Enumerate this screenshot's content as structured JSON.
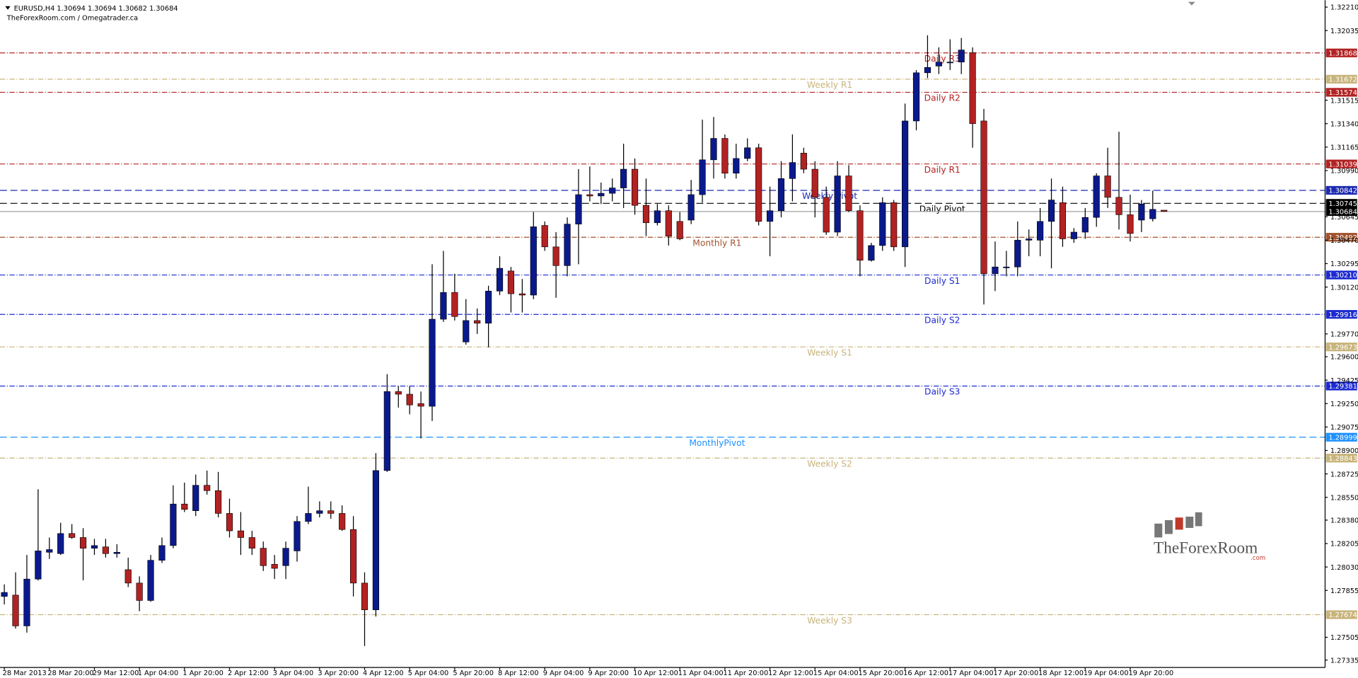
{
  "chart_data": {
    "type": "candlestick",
    "title": "EURUSD,H4  1.30694 1.30694 1.30682 1.30684",
    "subtitle": "TheForexRoom.com / Omegatrader.ca",
    "logo": {
      "text": "TheForexRoom",
      "suffix": ".com"
    },
    "up_color": "#0a1a8c",
    "down_color": "#b22222",
    "ylim": [
      1.2728,
      1.32262
    ],
    "yticks": [
      {
        "value": 1.3221,
        "label": "1.32210"
      },
      {
        "value": 1.32035,
        "label": "1.32035"
      },
      {
        "value": 1.31515,
        "label": "1.31515"
      },
      {
        "value": 1.3134,
        "label": "1.31340"
      },
      {
        "value": 1.31165,
        "label": "1.31165"
      },
      {
        "value": 1.3099,
        "label": "1.30990"
      },
      {
        "value": 1.30645,
        "label": "1.30645"
      },
      {
        "value": 1.3047,
        "label": "1.30470"
      },
      {
        "value": 1.30295,
        "label": "1.30295"
      },
      {
        "value": 1.3012,
        "label": "1.30120"
      },
      {
        "value": 1.2977,
        "label": "1.29770"
      },
      {
        "value": 1.296,
        "label": "1.29600"
      },
      {
        "value": 1.29425,
        "label": "1.29425"
      },
      {
        "value": 1.2925,
        "label": "1.29250"
      },
      {
        "value": 1.29075,
        "label": "1.29075"
      },
      {
        "value": 1.289,
        "label": "1.28900"
      },
      {
        "value": 1.28725,
        "label": "1.28725"
      },
      {
        "value": 1.2855,
        "label": "1.28550"
      },
      {
        "value": 1.2838,
        "label": "1.28380"
      },
      {
        "value": 1.28205,
        "label": "1.28205"
      },
      {
        "value": 1.2803,
        "label": "1.28030"
      },
      {
        "value": 1.27855,
        "label": "1.27855"
      },
      {
        "value": 1.27505,
        "label": "1.27505"
      },
      {
        "value": 1.27335,
        "label": "1.27335"
      }
    ],
    "categories": [
      "28 Mar 2013",
      null,
      null,
      null,
      "28 Mar 20:00",
      null,
      null,
      null,
      "29 Mar 12:00",
      null,
      null,
      null,
      "1 Apr 04:00",
      null,
      null,
      null,
      "1 Apr 20:00",
      null,
      null,
      null,
      "2 Apr 12:00",
      null,
      null,
      null,
      "3 Apr 04:00",
      null,
      null,
      null,
      "3 Apr 20:00",
      null,
      null,
      null,
      "4 Apr 12:00",
      null,
      null,
      null,
      "5 Apr 04:00",
      null,
      null,
      null,
      "5 Apr 20:00",
      null,
      null,
      null,
      "8 Apr 12:00",
      null,
      null,
      null,
      "9 Apr 04:00",
      null,
      null,
      null,
      "9 Apr 20:00",
      null,
      null,
      null,
      "10 Apr 12:00",
      null,
      null,
      null,
      "11 Apr 04:00",
      null,
      null,
      null,
      "11 Apr 20:00",
      null,
      null,
      null,
      "12 Apr 12:00",
      null,
      null,
      null,
      "15 Apr 04:00",
      null,
      null,
      null,
      "15 Apr 20:00",
      null,
      null,
      null,
      "16 Apr 12:00",
      null,
      null,
      null,
      "17 Apr 04:00",
      null,
      null,
      null,
      "17 Apr 20:00",
      null,
      null,
      null,
      "18 Apr 12:00",
      null,
      null,
      null,
      "19 Apr 04:00",
      null,
      null,
      null,
      "19 Apr 20:00",
      null,
      null,
      null
    ],
    "open": [
      1.2781,
      1.2782,
      1.2759,
      1.2794,
      1.2814,
      1.2813,
      1.2828,
      1.2825,
      1.2817,
      1.2818,
      1.2813,
      1.2801,
      1.2791,
      1.2778,
      1.2808,
      1.2819,
      1.285,
      1.2845,
      1.2864,
      1.286,
      1.2843,
      1.283,
      1.2825,
      1.2817,
      1.2805,
      1.2804,
      1.2815,
      1.2837,
      1.2843,
      1.2845,
      1.2843,
      1.2831,
      1.2791,
      1.2771,
      1.2875,
      1.2934,
      1.2932,
      1.2925,
      1.2923,
      1.2988,
      1.3008,
      1.2971,
      1.2987,
      1.2985,
      1.3009,
      1.3024,
      1.3007,
      1.3006,
      1.3058,
      1.3042,
      1.3028,
      1.3059,
      1.3081,
      1.308,
      1.3082,
      1.3086,
      1.31,
      1.3073,
      1.306,
      1.3069,
      1.3061,
      1.3062,
      1.3081,
      1.3107,
      1.3123,
      1.3097,
      1.3108,
      1.3116,
      1.3061,
      1.3069,
      1.3093,
      1.3112,
      1.31,
      1.3079,
      1.3053,
      1.3095,
      1.3069,
      1.3032,
      1.3043,
      1.3075,
      1.3042,
      1.3136,
      1.3172,
      1.3177,
      1.318,
      1.318,
      1.3187,
      1.3136,
      1.3022,
      1.3027,
      1.3027,
      1.3047,
      1.3047,
      1.3061,
      1.3075,
      1.3048,
      1.3053,
      1.3064,
      1.3095,
      1.3079,
      1.3066,
      1.3062,
      1.3063,
      1.30694
    ],
    "high": [
      1.279,
      1.2799,
      1.2812,
      1.2861,
      1.2825,
      1.2836,
      1.2835,
      1.2832,
      1.2824,
      1.2824,
      1.282,
      1.281,
      1.2796,
      1.2812,
      1.2825,
      1.2864,
      1.2866,
      1.2872,
      1.2875,
      1.2874,
      1.2854,
      1.2844,
      1.283,
      1.2822,
      1.2812,
      1.2822,
      1.2841,
      1.2863,
      1.2852,
      1.2852,
      1.2849,
      1.2841,
      1.2799,
      1.2888,
      1.2947,
      1.2938,
      1.2938,
      1.2934,
      1.3029,
      1.3039,
      1.3022,
      1.3003,
      1.2996,
      1.3013,
      1.3035,
      1.3027,
      1.3018,
      1.3068,
      1.3061,
      1.3053,
      1.3064,
      1.31,
      1.3102,
      1.309,
      1.3093,
      1.3119,
      1.3108,
      1.3093,
      1.3074,
      1.3073,
      1.3068,
      1.3092,
      1.3137,
      1.3139,
      1.3126,
      1.3119,
      1.3123,
      1.3119,
      1.3087,
      1.3106,
      1.3126,
      1.3116,
      1.3106,
      1.3087,
      1.3106,
      1.3103,
      1.3073,
      1.3045,
      1.3079,
      1.3077,
      1.3149,
      1.3174,
      1.32,
      1.3191,
      1.3197,
      1.3198,
      1.3191,
      1.3145,
      1.3046,
      1.3039,
      1.3061,
      1.3055,
      1.3071,
      1.3093,
      1.3087,
      1.3056,
      1.3071,
      1.3097,
      1.3116,
      1.3128,
      1.3081,
      1.3077,
      1.3084,
      1.30694
    ],
    "low": [
      1.2775,
      1.2757,
      1.2754,
      1.2793,
      1.2809,
      1.2812,
      1.2824,
      1.2793,
      1.2812,
      1.281,
      1.281,
      1.2788,
      1.277,
      1.2777,
      1.2806,
      1.2817,
      1.2844,
      1.2841,
      1.2857,
      1.284,
      1.2825,
      1.2812,
      1.2812,
      1.28,
      1.2794,
      1.2794,
      1.2807,
      1.2835,
      1.284,
      1.2839,
      1.283,
      1.2781,
      1.2744,
      1.2766,
      1.2874,
      1.2922,
      1.2917,
      1.2899,
      1.2912,
      1.2986,
      1.2987,
      1.2969,
      1.2977,
      1.2967,
      1.3006,
      1.2993,
      1.2993,
      1.3003,
      1.3039,
      1.3004,
      1.302,
      1.3029,
      1.3076,
      1.3074,
      1.3076,
      1.3071,
      1.3066,
      1.305,
      1.3058,
      1.3043,
      1.3047,
      1.3059,
      1.3075,
      1.3093,
      1.3093,
      1.3093,
      1.3106,
      1.3058,
      1.3035,
      1.3064,
      1.3076,
      1.3097,
      1.3064,
      1.3051,
      1.305,
      1.3068,
      1.302,
      1.3031,
      1.3039,
      1.3039,
      1.3027,
      1.3129,
      1.3168,
      1.3171,
      1.3174,
      1.3171,
      1.3116,
      1.2999,
      1.3009,
      1.302,
      1.302,
      1.3035,
      1.3035,
      1.3026,
      1.3042,
      1.3045,
      1.3048,
      1.3057,
      1.3071,
      1.3055,
      1.3046,
      1.3053,
      1.3061,
      1.30682
    ],
    "close": [
      1.2784,
      1.2759,
      1.2794,
      1.2815,
      1.2816,
      1.2828,
      1.2825,
      1.2817,
      1.2819,
      1.2813,
      1.2814,
      1.2791,
      1.2778,
      1.2808,
      1.2819,
      1.285,
      1.2846,
      1.2864,
      1.286,
      1.2843,
      1.283,
      1.2825,
      1.2817,
      1.2804,
      1.2802,
      1.2817,
      1.2837,
      1.2843,
      1.2845,
      1.2843,
      1.2831,
      1.2791,
      1.2771,
      1.2875,
      1.2934,
      1.2932,
      1.2924,
      1.2923,
      1.2988,
      1.3008,
      1.299,
      1.2987,
      1.2985,
      1.3009,
      1.3026,
      1.3007,
      1.3006,
      1.3057,
      1.3042,
      1.3028,
      1.3059,
      1.3081,
      1.308,
      1.3082,
      1.3086,
      1.31,
      1.3073,
      1.306,
      1.3069,
      1.305,
      1.3048,
      1.3081,
      1.3107,
      1.3123,
      1.3097,
      1.3108,
      1.3116,
      1.3061,
      1.3069,
      1.3093,
      1.3105,
      1.31,
      1.3079,
      1.3053,
      1.3095,
      1.3069,
      1.3032,
      1.3043,
      1.3075,
      1.3042,
      1.3136,
      1.3172,
      1.3176,
      1.318,
      1.318,
      1.3189,
      1.3134,
      1.3022,
      1.3027,
      1.3027,
      1.3047,
      1.3048,
      1.3061,
      1.3077,
      1.3048,
      1.3053,
      1.3064,
      1.3095,
      1.3079,
      1.3066,
      1.3052,
      1.3074,
      1.307,
      1.30684
    ],
    "last_price": {
      "value": 1.30684,
      "label": "1.30684",
      "color": "#000000"
    },
    "levels": [
      {
        "label": "Daily R3",
        "value": 1.31868,
        "value_label": "1.31868",
        "color": "#b22222",
        "style": "dashdot"
      },
      {
        "label": "Weekly R1",
        "value": 1.31672,
        "value_label": "1.31672",
        "color": "#c8b47a",
        "style": "dashdot"
      },
      {
        "label": "Daily R2",
        "value": 1.31574,
        "value_label": "1.31574",
        "color": "#b22222",
        "style": "dashdot"
      },
      {
        "label": "Daily R1",
        "value": 1.31039,
        "value_label": "1.31039",
        "color": "#b22222",
        "style": "dashdot"
      },
      {
        "label": "Weekly Pivot",
        "value": 1.30842,
        "value_label": "1.30842",
        "color": "#1c2ab0",
        "style": "dash"
      },
      {
        "label": "Daily Pivot",
        "value": 1.30745,
        "value_label": "1.30745",
        "color": "#000000",
        "style": "dash"
      },
      {
        "label": "Monthly R1",
        "value": 1.30492,
        "value_label": "1.30492",
        "color": "#a0522d",
        "style": "dashdot"
      },
      {
        "label": "Daily S1",
        "value": 1.3021,
        "value_label": "1.30210",
        "color": "#1c2ad0",
        "style": "dashdot"
      },
      {
        "label": "Daily S2",
        "value": 1.29916,
        "value_label": "1.29916",
        "color": "#1c2ad0",
        "style": "dashdot"
      },
      {
        "label": "Weekly S1",
        "value": 1.29673,
        "value_label": "1.29673",
        "color": "#c8b47a",
        "style": "dashdot"
      },
      {
        "label": "Daily S3",
        "value": 1.29381,
        "value_label": "1.29381",
        "color": "#1c2ad0",
        "style": "dashdot"
      },
      {
        "label": "MonthlyPivot",
        "value": 1.28999,
        "value_label": "1.28999",
        "color": "#1e90ff",
        "style": "dash"
      },
      {
        "label": "Weekly S2",
        "value": 1.28843,
        "value_label": "1.28843",
        "color": "#c8b47a",
        "style": "dashdot"
      },
      {
        "label": "Weekly S3",
        "value": 1.27674,
        "value_label": "1.27674",
        "color": "#c8b47a",
        "style": "dashdot"
      }
    ]
  }
}
